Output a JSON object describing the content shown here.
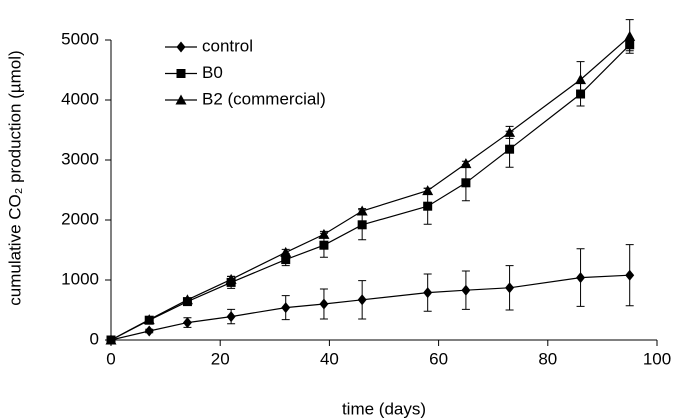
{
  "chart_data": {
    "type": "line",
    "x_label": "time (days)",
    "y_label": "cumulative CO₂ production (µmol)",
    "x": [
      0,
      7,
      14,
      22,
      32,
      39,
      46,
      58,
      65,
      73,
      86,
      95
    ],
    "series": [
      {
        "name": "control",
        "color": "#000000",
        "marker": "diamond",
        "values": [
          0,
          150,
          290,
          390,
          540,
          600,
          670,
          790,
          830,
          870,
          1040,
          1080
        ],
        "errors": [
          0,
          30,
          80,
          120,
          200,
          250,
          320,
          310,
          320,
          370,
          480,
          510
        ]
      },
      {
        "name": "B0",
        "color": "#000000",
        "marker": "square",
        "values": [
          0,
          330,
          640,
          960,
          1340,
          1580,
          1920,
          2230,
          2620,
          3180,
          4100,
          4920
        ],
        "errors": [
          0,
          30,
          60,
          100,
          100,
          200,
          250,
          300,
          300,
          300,
          200,
          100
        ]
      },
      {
        "name": "B2 (commercial)",
        "color": "#000000",
        "marker": "triangle",
        "values": [
          0,
          340,
          670,
          1010,
          1460,
          1760,
          2150,
          2490,
          2940,
          3460,
          4340,
          5060
        ],
        "errors": [
          0,
          20,
          30,
          50,
          50,
          50,
          40,
          40,
          40,
          100,
          300,
          280
        ]
      }
    ],
    "xlim": [
      0,
      100
    ],
    "xticks": [
      0,
      20,
      40,
      60,
      80,
      100
    ],
    "ylim": [
      0,
      5000
    ],
    "yticks": [
      0,
      1000,
      2000,
      3000,
      4000,
      5000
    ],
    "grid": false,
    "legend": "upper left"
  }
}
